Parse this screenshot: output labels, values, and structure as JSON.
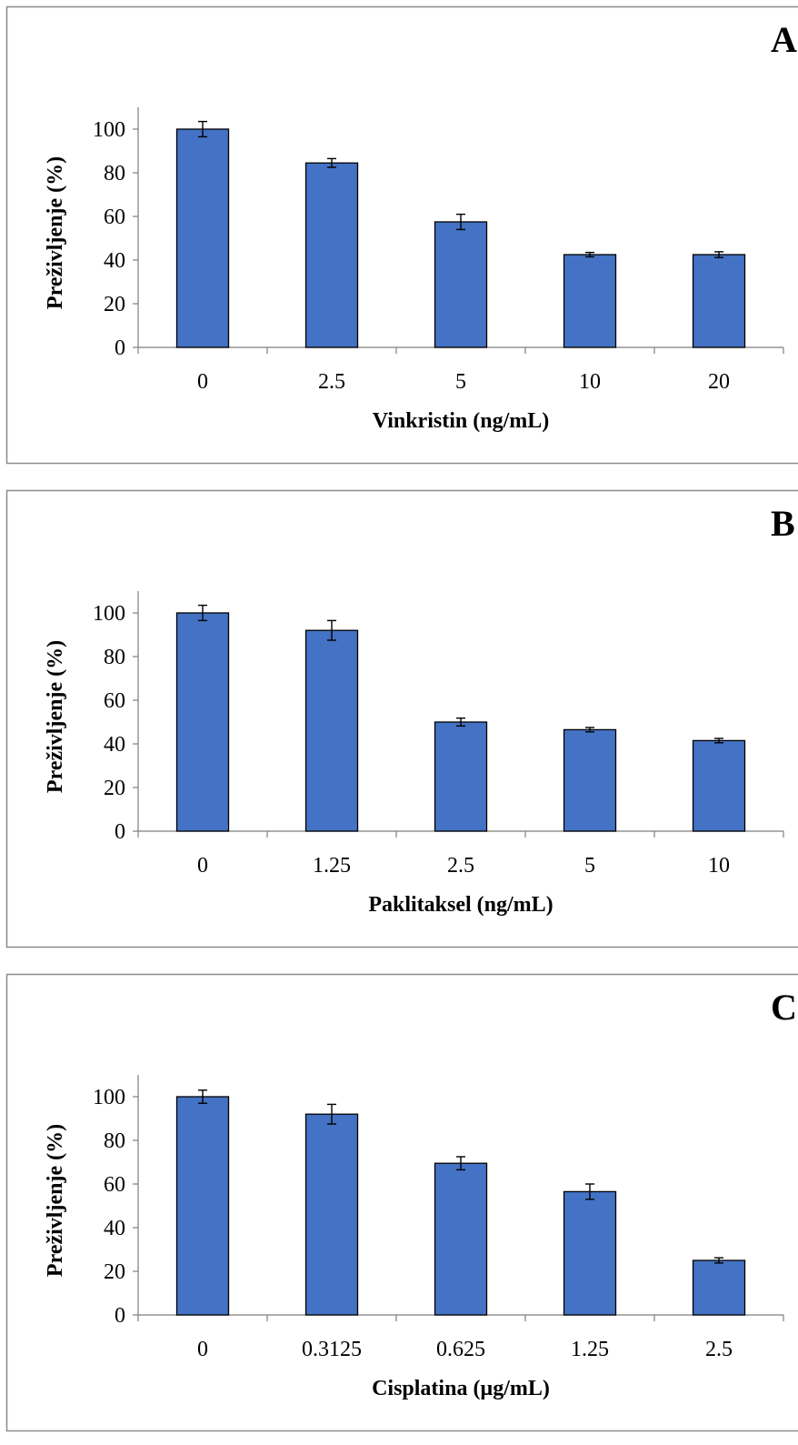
{
  "bar_color": "#4472C4",
  "chart_data": [
    {
      "type": "bar",
      "panel": "A",
      "categories": [
        "0",
        "2.5",
        "5",
        "10",
        "20"
      ],
      "values": [
        100,
        84.5,
        57.5,
        42.5,
        42.5
      ],
      "errors": [
        3.5,
        2.0,
        3.5,
        1.0,
        1.3
      ],
      "xlabel": "Vinkristin (ng/mL)",
      "ylabel": "Preživljenje (%)",
      "ylim": [
        0,
        110
      ],
      "yticks": [
        "0",
        "20",
        "40",
        "60",
        "80",
        "100"
      ],
      "grid": false,
      "legend": "none"
    },
    {
      "type": "bar",
      "panel": "B",
      "categories": [
        "0",
        "1.25",
        "2.5",
        "5",
        "10"
      ],
      "values": [
        100,
        92,
        50,
        46.5,
        41.5
      ],
      "errors": [
        3.5,
        4.5,
        1.8,
        1.0,
        1.0
      ],
      "xlabel": "Paklitaksel (ng/mL)",
      "ylabel": "Preživljenje (%)",
      "ylim": [
        0,
        110
      ],
      "yticks": [
        "0",
        "20",
        "40",
        "60",
        "80",
        "100"
      ],
      "grid": false,
      "legend": "none"
    },
    {
      "type": "bar",
      "panel": "C",
      "categories": [
        "0",
        "0.3125",
        "0.625",
        "1.25",
        "2.5"
      ],
      "values": [
        100,
        92,
        69.5,
        56.5,
        25
      ],
      "errors": [
        3.0,
        4.5,
        3.0,
        3.5,
        1.2
      ],
      "xlabel": "Cisplatina (µg/mL)",
      "ylabel": "Preživljenje (%)",
      "ylim": [
        0,
        110
      ],
      "yticks": [
        "0",
        "20",
        "40",
        "60",
        "80",
        "100"
      ],
      "grid": false,
      "legend": "none"
    }
  ]
}
